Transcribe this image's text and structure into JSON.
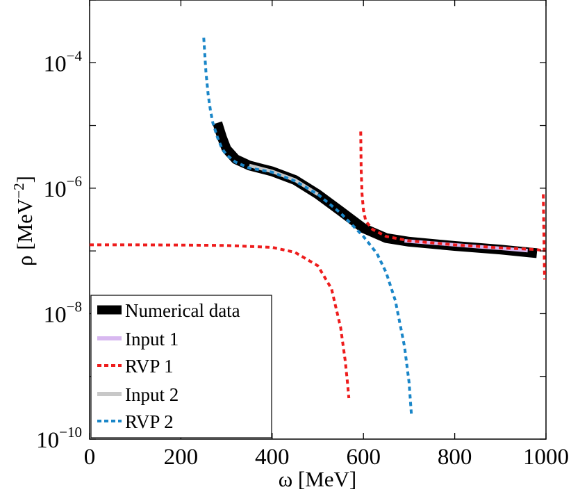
{
  "chart_data": {
    "type": "line",
    "title": "",
    "xlabel": "ω [MeV]",
    "ylabel_main": "ρ [MeV",
    "ylabel_sup": "−2",
    "ylabel_close": "]",
    "xlim": [
      0,
      1000
    ],
    "ylim": [
      1e-10,
      0.001
    ],
    "yscale": "log",
    "grid": false,
    "legend_position": "bottom-left",
    "x_ticks": [
      {
        "value": 0,
        "label": "0"
      },
      {
        "value": 200,
        "label": "200"
      },
      {
        "value": 400,
        "label": "400"
      },
      {
        "value": 600,
        "label": "600"
      },
      {
        "value": 800,
        "label": "800"
      },
      {
        "value": 1000,
        "label": "1000"
      }
    ],
    "y_ticks": [
      {
        "value": 1e-10,
        "base": "10",
        "exp": "−10"
      },
      {
        "value": 1e-08,
        "base": "10",
        "exp": "−8"
      },
      {
        "value": 1e-06,
        "base": "10",
        "exp": "−6"
      },
      {
        "value": 0.0001,
        "base": "10",
        "exp": "−4"
      }
    ],
    "series": [
      {
        "name": "Numerical data",
        "color": "#000000",
        "style": "solid-thick",
        "segments": [
          {
            "x": [
              280,
              290,
              300,
              320,
              350,
              400,
              450,
              500,
              550,
              600,
              650,
              700,
              800,
              900,
              980
            ],
            "y": [
              1.1e-05,
              6.5e-06,
              4.2e-06,
              2.9e-06,
              2.3e-06,
              1.85e-06,
              1.35e-06,
              8e-07,
              4.3e-07,
              2.3e-07,
              1.6e-07,
              1.4e-07,
              1.2e-07,
              1.05e-07,
              9.2e-08
            ]
          }
        ]
      },
      {
        "name": "Input 1",
        "color": "#d8b8f0",
        "style": "solid",
        "segments": [
          {
            "x": [
              690,
              750,
              800,
              850,
              900,
              960
            ],
            "y": [
              1.45e-07,
              1.34e-07,
              1.25e-07,
              1.17e-07,
              1.1e-07,
              1.01e-07
            ]
          }
        ]
      },
      {
        "name": "RVP 1",
        "color": "#ee1c1c",
        "style": "dashed",
        "segments": [
          {
            "x": [
              0,
              100,
              200,
              300,
              400,
              450,
              500,
              530,
              550,
              560,
              565,
              568
            ],
            "y": [
              1.25e-07,
              1.25e-07,
              1.24e-07,
              1.22e-07,
              1.14e-07,
              9.5e-08,
              5.8e-08,
              2.5e-08,
              6e-09,
              1.8e-09,
              8e-10,
              4.5e-10
            ]
          },
          {
            "x": [
              594,
              595,
              597,
              600,
              605,
              620,
              650,
              700,
              800,
              900,
              980,
              990
            ],
            "y": [
              8e-06,
              2e-06,
              8e-07,
              4.5e-07,
              3e-07,
              2.2e-07,
              1.7e-07,
              1.45e-07,
              1.25e-07,
              1.12e-07,
              1.05e-07,
              1.02e-07
            ]
          },
          {
            "x": [
              994,
              995,
              996,
              997
            ],
            "y": [
              8e-07,
              3e-07,
              9e-08,
              3.5e-08
            ]
          }
        ]
      },
      {
        "name": "Input 2",
        "color": "#c8c8c8",
        "style": "solid",
        "segments": [
          {
            "x": [
              350,
              400,
              450,
              500
            ],
            "y": [
              2.3e-06,
              1.85e-06,
              1.35e-06,
              8e-07
            ]
          }
        ]
      },
      {
        "name": "RVP 2",
        "color": "#1a86c8",
        "style": "dashed",
        "segments": [
          {
            "x": [
              250,
              255,
              260,
              265,
              270,
              280,
              290,
              300,
              320,
              350,
              400,
              450,
              500,
              550,
              600,
              630,
              650,
              670,
              690,
              700,
              705
            ],
            "y": [
              0.00025,
              7e-05,
              3e-05,
              1.7e-05,
              1.1e-05,
              6.5e-06,
              4.3e-06,
              3.4e-06,
              2.6e-06,
              2.1e-06,
              1.8e-06,
              1.3e-06,
              8e-07,
              4e-07,
              1.7e-07,
              9e-08,
              4.5e-08,
              1.6e-08,
              3e-09,
              8e-10,
              2.5e-10
            ]
          }
        ]
      }
    ],
    "legend": [
      {
        "label": "Numerical data",
        "swatch": "thick-black"
      },
      {
        "label": "Input 1",
        "swatch": "lilac"
      },
      {
        "label": "RVP 1",
        "swatch": "red-dashed"
      },
      {
        "label": "Input 2",
        "swatch": "gray"
      },
      {
        "label": "RVP 2",
        "swatch": "blue-dashed"
      }
    ]
  }
}
